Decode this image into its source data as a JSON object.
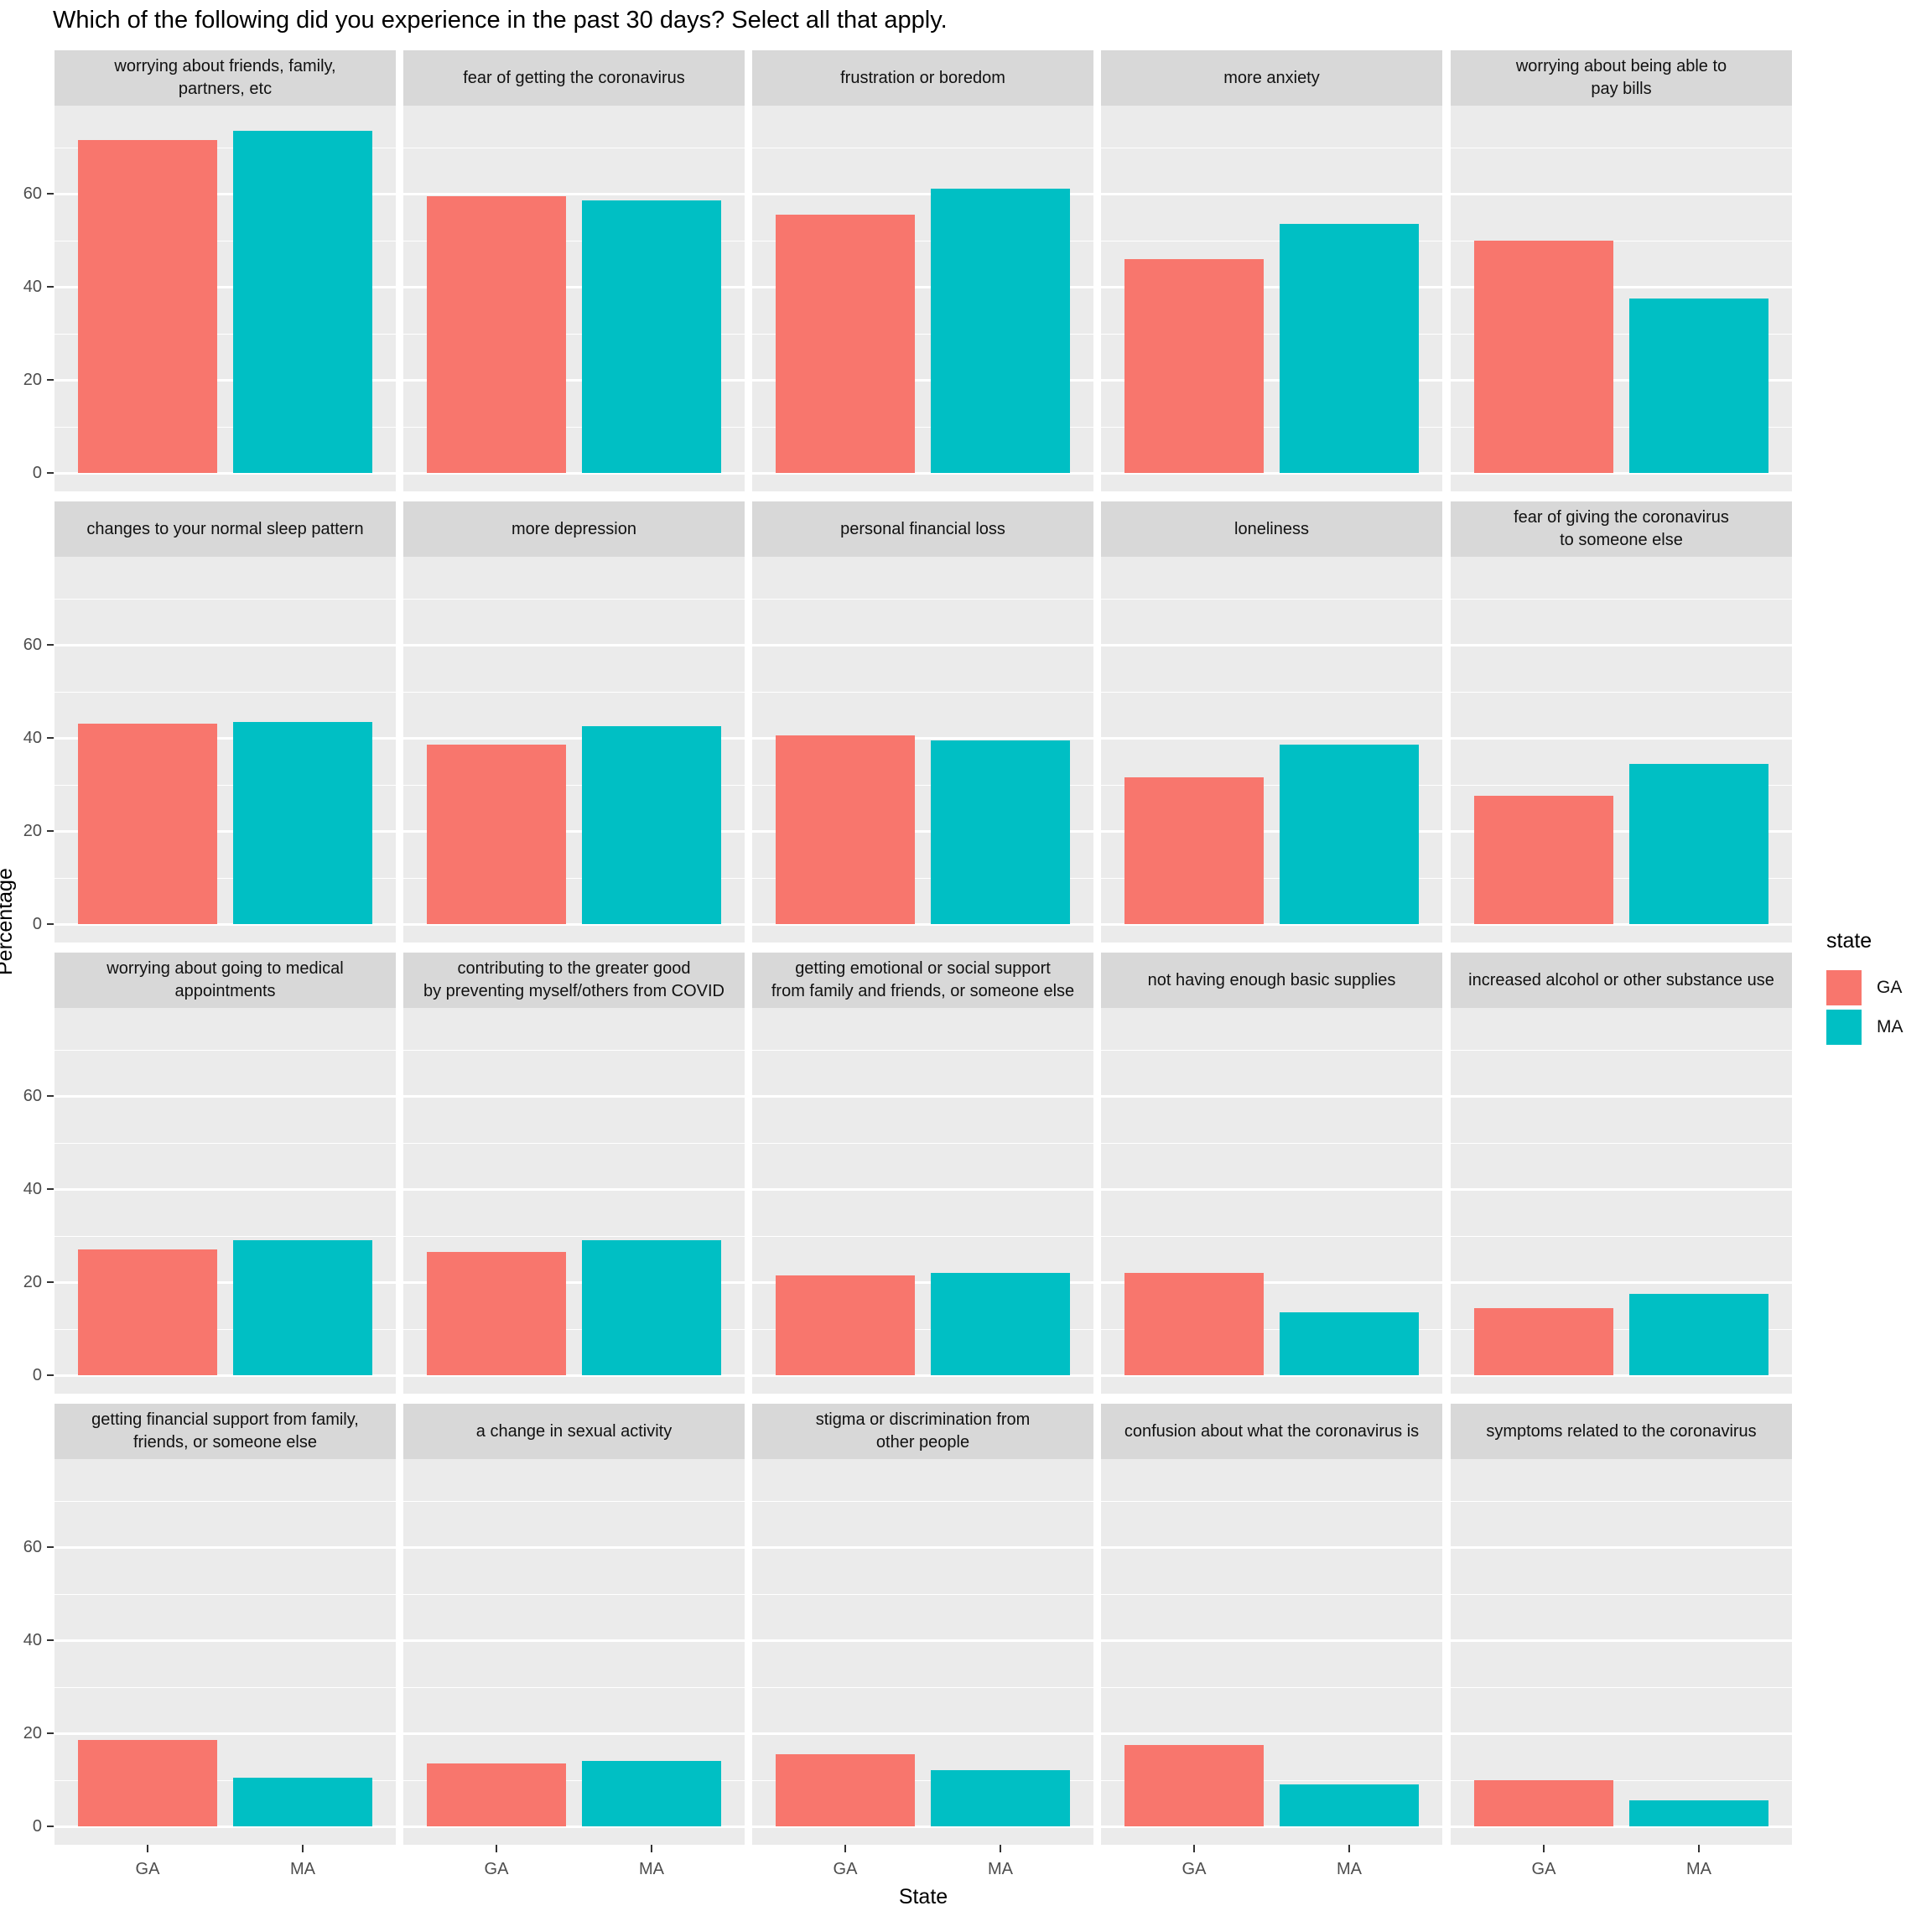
{
  "title": "Which of the following did you experience in the past 30 days? Select all that apply.",
  "chart_data": {
    "type": "bar",
    "title": "Which of the following did you experience in the past 30 days? Select all that apply.",
    "xlabel": "State",
    "ylabel": "Percentage",
    "categories": [
      "GA",
      "MA"
    ],
    "y_ticks": [
      0,
      20,
      40,
      60
    ],
    "y_minor_ticks": [
      10,
      30,
      50,
      70
    ],
    "ylim": [
      0,
      79
    ],
    "grid": "on",
    "legend": {
      "title": "state",
      "position": "right",
      "entries": [
        {
          "label": "GA",
          "color": "#F8766D"
        },
        {
          "label": "MA",
          "color": "#00BFC4"
        }
      ]
    },
    "facets": [
      {
        "label": "worrying about friends, family,\npartners, etc",
        "values": {
          "GA": 71.5,
          "MA": 73.5
        }
      },
      {
        "label": "fear of getting the coronavirus",
        "values": {
          "GA": 59.5,
          "MA": 58.5
        }
      },
      {
        "label": "frustration or boredom",
        "values": {
          "GA": 55.5,
          "MA": 61
        }
      },
      {
        "label": "more anxiety",
        "values": {
          "GA": 46,
          "MA": 53.5
        }
      },
      {
        "label": "worrying about being able to\npay bills",
        "values": {
          "GA": 50,
          "MA": 37.5
        }
      },
      {
        "label": "changes to your normal sleep pattern",
        "values": {
          "GA": 43,
          "MA": 43.5
        }
      },
      {
        "label": "more depression",
        "values": {
          "GA": 38.5,
          "MA": 42.5
        }
      },
      {
        "label": "personal financial loss",
        "values": {
          "GA": 40.5,
          "MA": 39.5
        }
      },
      {
        "label": "loneliness",
        "values": {
          "GA": 31.5,
          "MA": 38.5
        }
      },
      {
        "label": "fear of giving the coronavirus\nto someone else",
        "values": {
          "GA": 27.5,
          "MA": 34.5
        }
      },
      {
        "label": "worrying about going to medical\nappointments",
        "values": {
          "GA": 27,
          "MA": 29
        }
      },
      {
        "label": "contributing to the greater good\nby preventing myself/others from COVID",
        "values": {
          "GA": 26.5,
          "MA": 29
        }
      },
      {
        "label": "getting emotional or social support\nfrom family and friends, or someone else",
        "values": {
          "GA": 21.5,
          "MA": 22
        }
      },
      {
        "label": "not having enough basic supplies",
        "values": {
          "GA": 22,
          "MA": 13.5
        }
      },
      {
        "label": "increased alcohol or other substance use",
        "values": {
          "GA": 14.5,
          "MA": 17.5
        }
      },
      {
        "label": "getting financial support from family,\nfriends, or someone else",
        "values": {
          "GA": 18.5,
          "MA": 10.5
        }
      },
      {
        "label": "a change in sexual activity",
        "values": {
          "GA": 13.5,
          "MA": 14
        }
      },
      {
        "label": "stigma or discrimination from\nother people",
        "values": {
          "GA": 15.5,
          "MA": 12
        }
      },
      {
        "label": "confusion about what the coronavirus is",
        "values": {
          "GA": 17.5,
          "MA": 9
        }
      },
      {
        "label": "symptoms related to the coronavirus",
        "values": {
          "GA": 10,
          "MA": 5.5
        }
      }
    ]
  }
}
